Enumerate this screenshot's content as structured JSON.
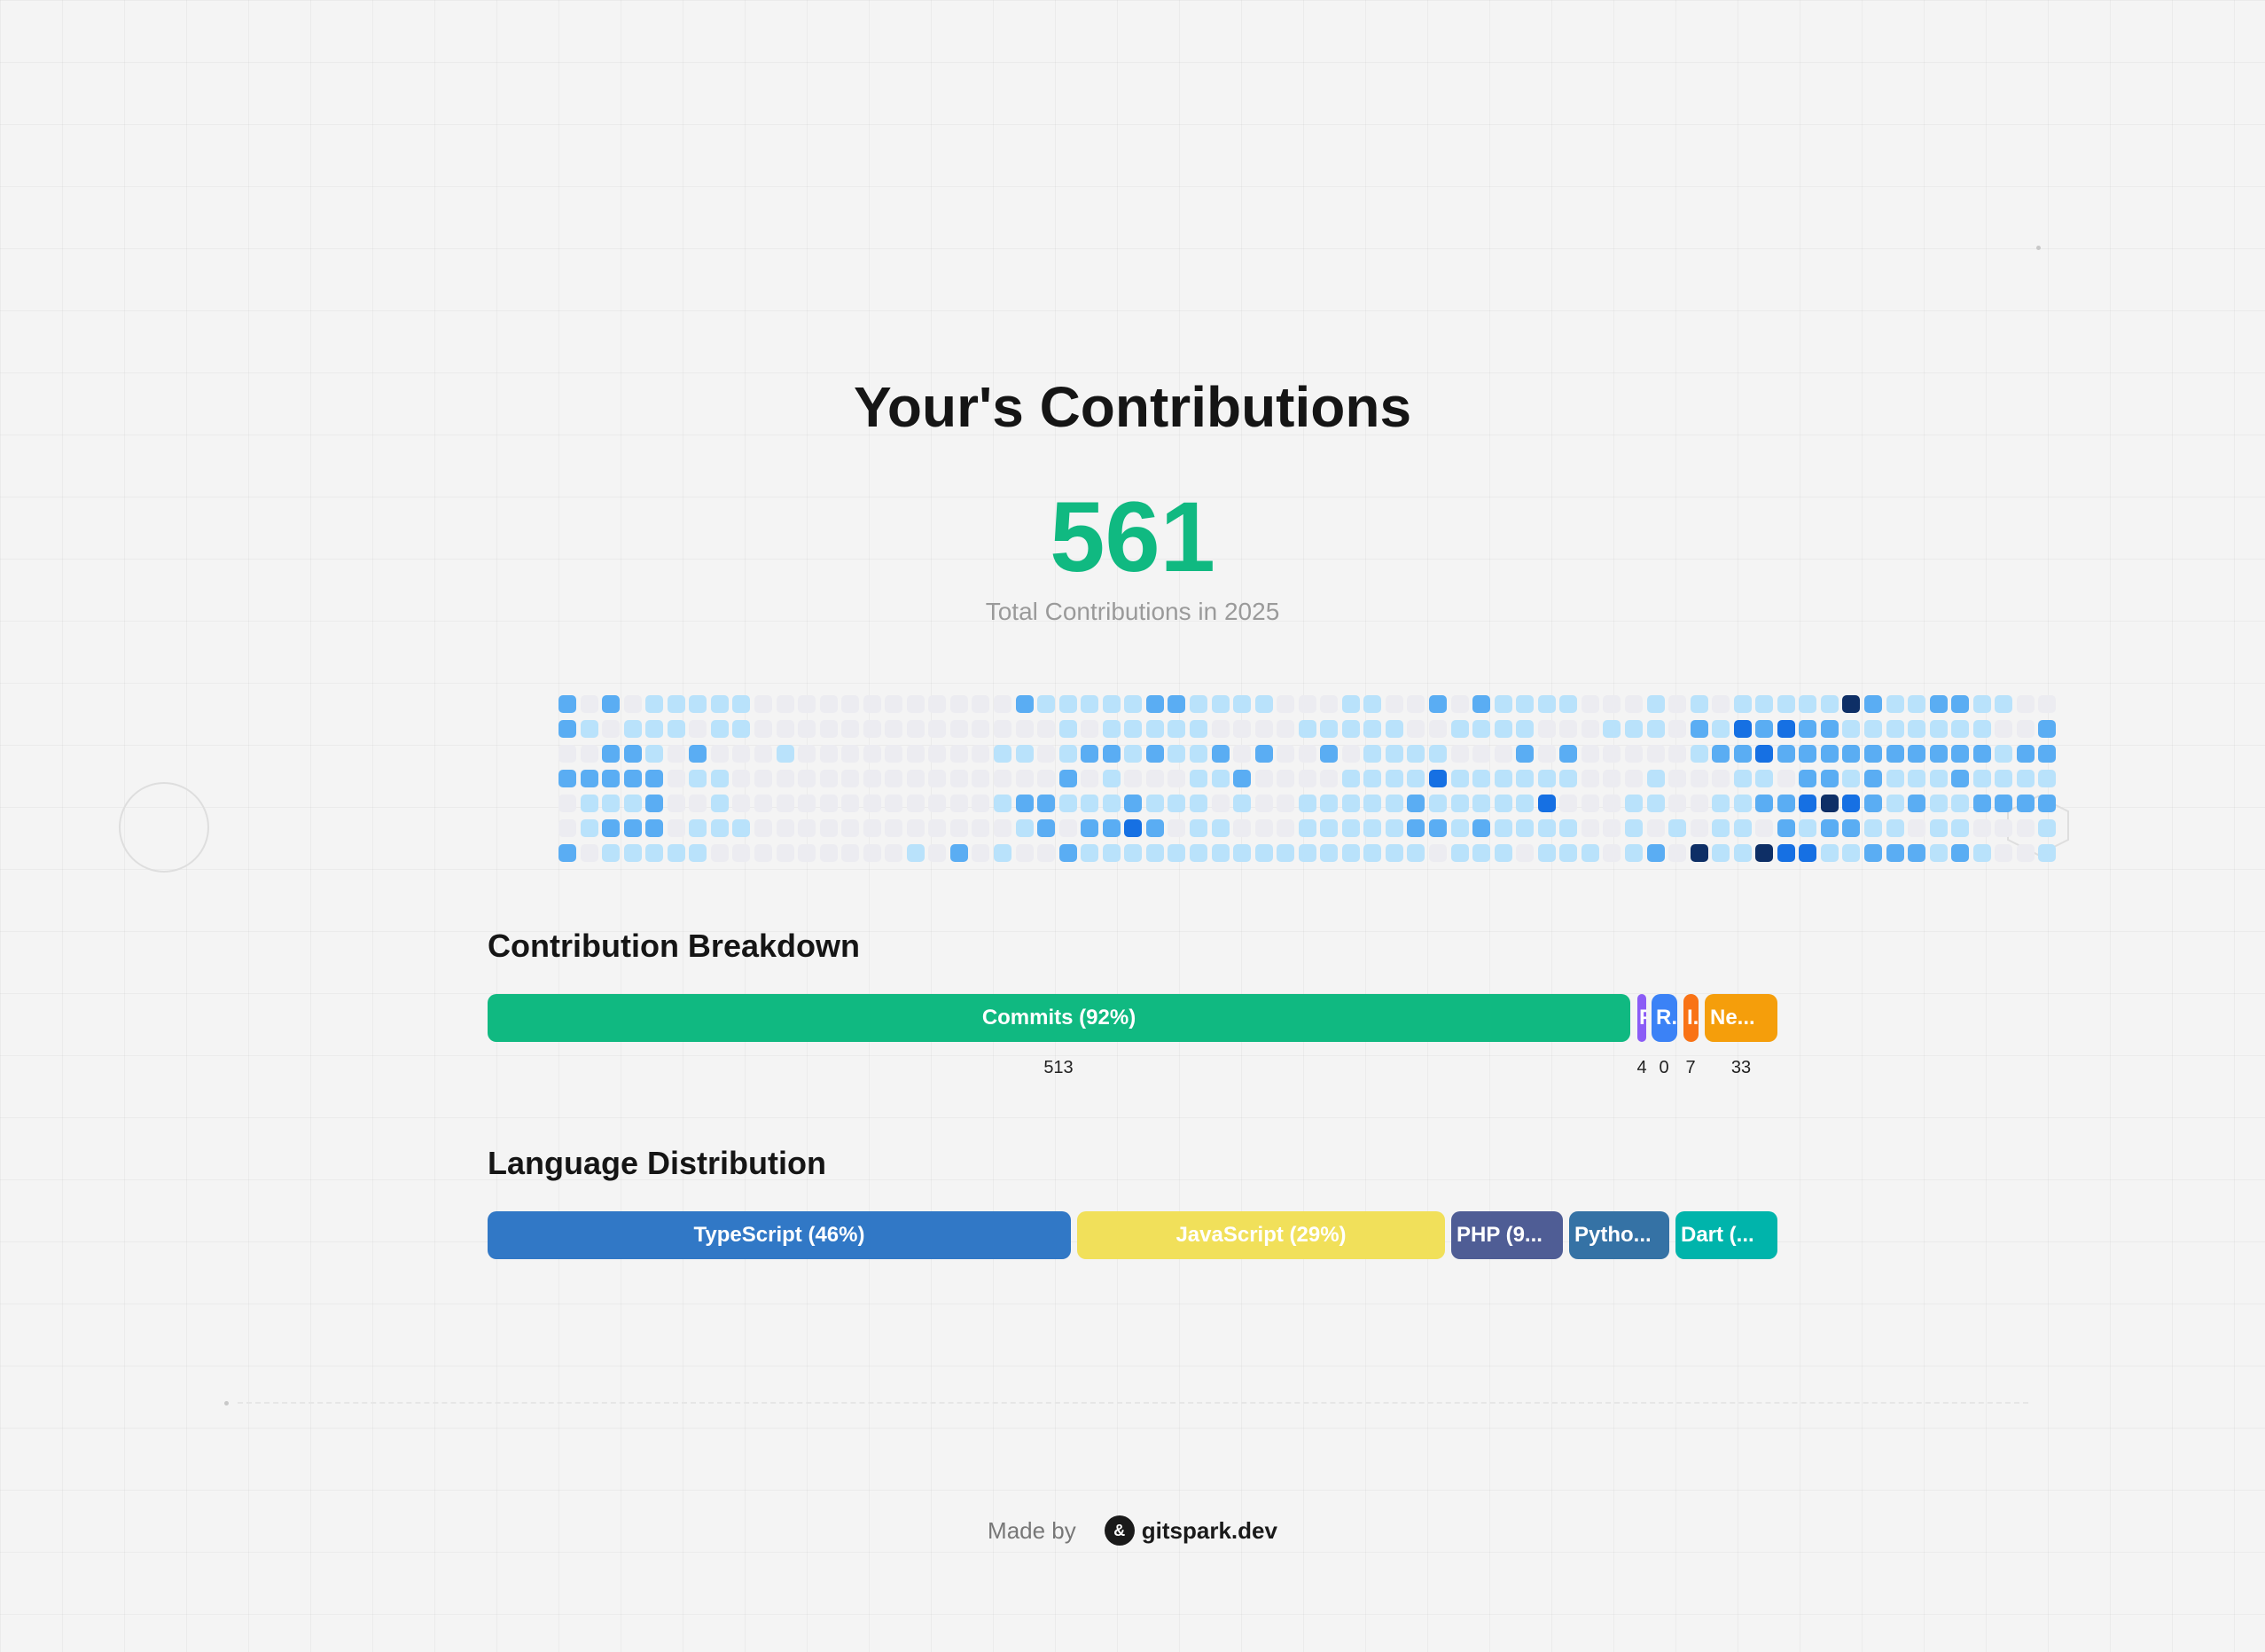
{
  "title": "Your's Contributions",
  "total": "561",
  "caption": "Total Contributions in 2025",
  "heatmap": {
    "levels": {
      "0": "#ececf1",
      "1": "#b9e2fb",
      "2": "#5aadf3",
      "3": "#1670e3",
      "4": "#0e2f66"
    },
    "rows": [
      "202011111000000000000211111221111000110020211110001010111114211221100",
      "210111011000000000000001011111000011111001111000111021323221111111002",
      "002210200010000000001101221211202002011110002020000012232222222222122",
      "222220110000000000000002010001120000111131111110001000110221211121111",
      "011120010000000000001221112111010011111211111300011001122343212112222",
      "012220111000000000000120223201100011111221211110010101102122110110001",
      "201111100000000010201002111111111111111101110111012041143311222121001"
    ]
  },
  "breakdown": {
    "title": "Contribution Breakdown",
    "segments": [
      {
        "label": "Commits (92%)",
        "count": "513",
        "color": "#10b981"
      },
      {
        "label": "P",
        "count": "4",
        "color": "#8b5cf6"
      },
      {
        "label": "R...",
        "count": "0",
        "color": "#3b82f6"
      },
      {
        "label": "I...",
        "count": "7",
        "color": "#f97316"
      },
      {
        "label": "Ne...",
        "count": "33",
        "color": "#f59e0b"
      }
    ]
  },
  "languages": {
    "title": "Language Distribution",
    "segments": [
      {
        "label": "TypeScript (46%)",
        "color": "#3178c6"
      },
      {
        "label": "JavaScript (29%)",
        "color": "#f1e05a"
      },
      {
        "label": "PHP (9...",
        "color": "#4f5d95"
      },
      {
        "label": "Pytho...",
        "color": "#3572a5"
      },
      {
        "label": "Dart (...",
        "color": "#00b4ab"
      }
    ]
  },
  "footer": {
    "made_by": "Made by",
    "brand": "gitspark.dev",
    "logo_glyph": "&"
  }
}
